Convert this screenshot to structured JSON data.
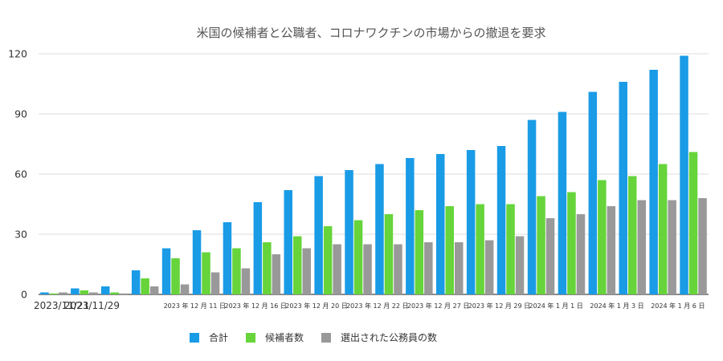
{
  "chart_data": {
    "type": "bar",
    "title": "米国の候補者と公職者、コロナワクチンの市場からの撤退を要求",
    "categories": [
      "2023/11/21",
      "2023/11/29",
      "",
      "",
      "2023 年 12 月 11 日",
      "",
      "2023 年 12 月 16 日",
      "",
      "2023 年 12 月 20 日",
      "",
      "2023 年 12 月 22 日",
      "",
      "2023 年 12 月 27 日",
      "",
      "2023 年 12 月 29 日",
      "",
      "2024 年 1 月 1 日",
      "",
      "2024 年 1 月 3 日",
      "",
      "2024 年 1 月 6 日",
      ""
    ],
    "series": [
      {
        "name": "合計",
        "color": "#1a9be6",
        "values": [
          1,
          3,
          4,
          12,
          23,
          32,
          36,
          46,
          52,
          59,
          62,
          65,
          68,
          70,
          72,
          74,
          87,
          91,
          101,
          106,
          112,
          119
        ]
      },
      {
        "name": "候補者数",
        "color": "#66d43a",
        "values": [
          0.5,
          2,
          1,
          8,
          18,
          21,
          23,
          26,
          29,
          34,
          37,
          40,
          42,
          44,
          45,
          45,
          49,
          51,
          57,
          59,
          65,
          71
        ]
      },
      {
        "name": "選出された公務員の数",
        "color": "#999999",
        "values": [
          1,
          1,
          0.5,
          4,
          5,
          11,
          13,
          20,
          23,
          25,
          25,
          25,
          26,
          26,
          27,
          29,
          38,
          40,
          44,
          47,
          47,
          48
        ]
      }
    ],
    "yticks": [
      0,
      30,
      60,
      90,
      120
    ],
    "ylim": [
      0,
      120
    ],
    "grid": true,
    "legend_position": "bottom"
  }
}
